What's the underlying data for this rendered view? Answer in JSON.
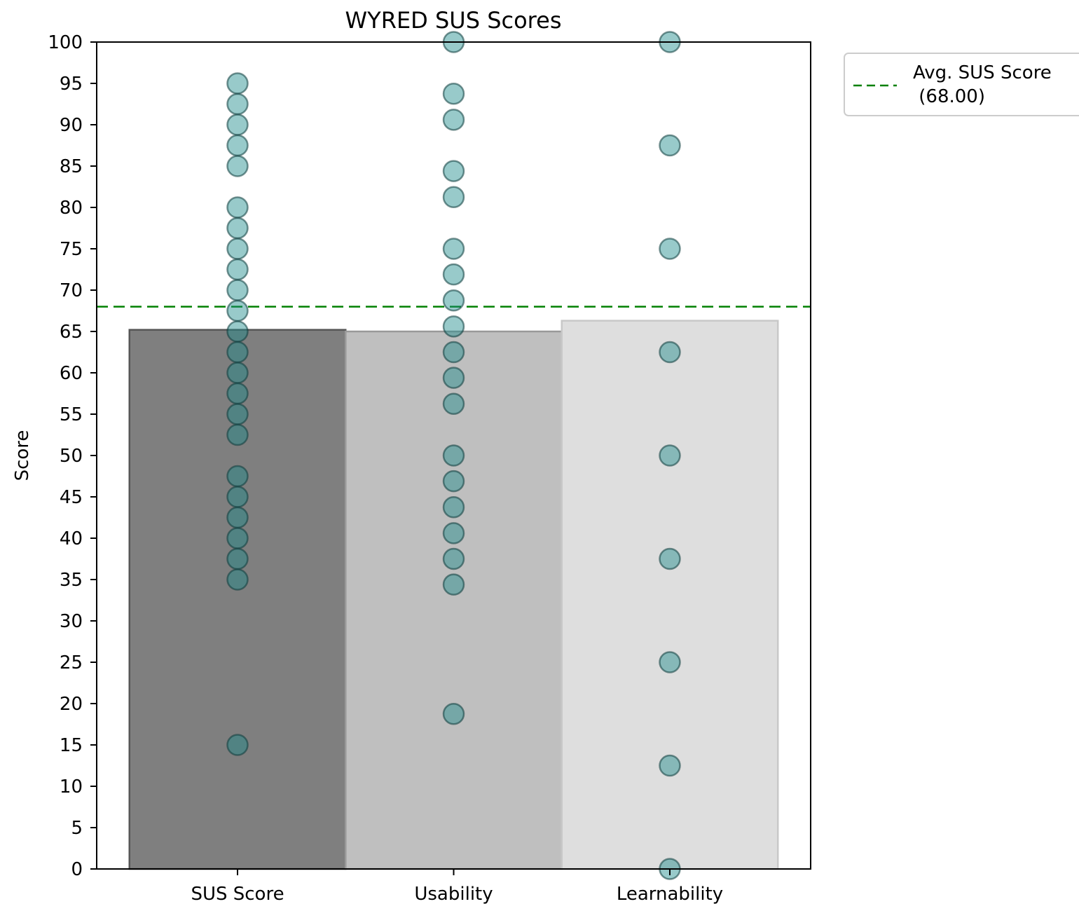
{
  "chart_data": {
    "type": "bar",
    "title": "WYRED SUS Scores",
    "xlabel": "",
    "ylabel": "Score",
    "ylim": [
      0,
      100
    ],
    "yticks": [
      0,
      5,
      10,
      15,
      20,
      25,
      30,
      35,
      40,
      45,
      50,
      55,
      60,
      65,
      70,
      75,
      80,
      85,
      90,
      95,
      100
    ],
    "categories": [
      "SUS Score",
      "Usability",
      "Learnability"
    ],
    "values": [
      65.2,
      65.0,
      66.3
    ],
    "bar_colors": [
      "#7f7f7f",
      "#bfbfbf",
      "#dedede"
    ],
    "bar_edge_colors": [
      "#555555",
      "#999999",
      "#c8c8c8"
    ],
    "reference_line": {
      "value": 68.0,
      "label": "Avg. SUS Score\n (68.00)",
      "color": "#008000",
      "style": "dashed"
    },
    "points_color": "#1a8a8a",
    "points": [
      {
        "category": "SUS Score",
        "values": [
          95,
          92.5,
          90,
          87.5,
          85,
          80,
          77.5,
          75,
          72.5,
          70,
          67.5,
          65,
          62.5,
          60,
          57.5,
          55,
          52.5,
          47.5,
          45,
          42.5,
          40,
          37.5,
          35,
          15
        ]
      },
      {
        "category": "Usability",
        "values": [
          100,
          93.75,
          90.6,
          84.4,
          81.25,
          75,
          71.9,
          68.75,
          65.6,
          62.5,
          59.4,
          56.25,
          50,
          46.9,
          43.75,
          40.6,
          37.5,
          34.4,
          18.75
        ]
      },
      {
        "category": "Learnability",
        "values": [
          100,
          87.5,
          75,
          62.5,
          50,
          37.5,
          25,
          12.5,
          0
        ]
      }
    ],
    "legend": {
      "position": "outside-top-right"
    },
    "grid": false
  }
}
